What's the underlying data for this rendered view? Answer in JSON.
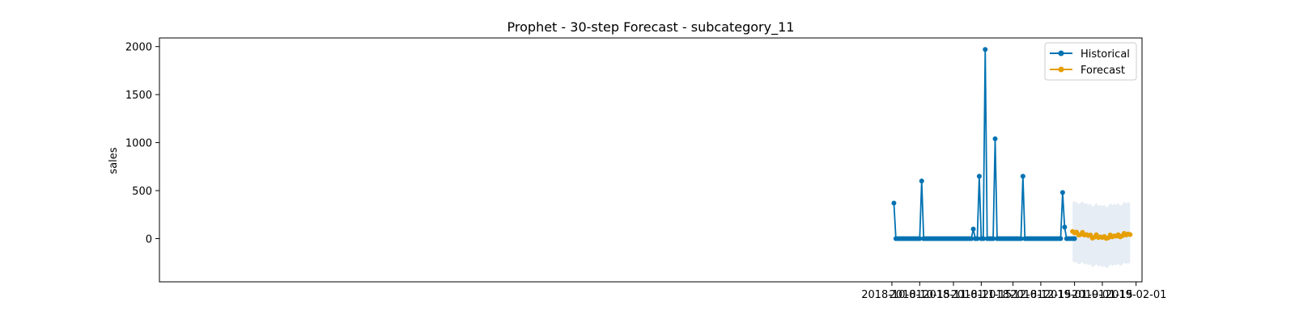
{
  "chart_data": {
    "type": "line",
    "title": "Prophet - 30-step Forecast - subcategory_11",
    "xlabel": "",
    "ylabel": "sales",
    "xlim": [
      "2017-09-27",
      "2019-02-04"
    ],
    "ylim": [
      -450,
      2090
    ],
    "x_ticks": [
      "2018-10-01",
      "2018-10-15",
      "2018-11-01",
      "2018-11-15",
      "2018-12-01",
      "2018-12-15",
      "2019-01-01",
      "2019-01-15",
      "2019-02-01"
    ],
    "y_ticks": [
      0,
      500,
      1000,
      1500,
      2000
    ],
    "grid": false,
    "legend": {
      "position": "top-right"
    },
    "colors": {
      "historical": "#0072B2",
      "forecast": "#E69F00",
      "band": "#dde7f1"
    },
    "series": [
      {
        "name": "Historical",
        "start": "2018-10-02",
        "values": [
          370,
          0,
          0,
          0,
          0,
          0,
          0,
          0,
          0,
          0,
          0,
          0,
          0,
          0,
          600,
          0,
          0,
          0,
          0,
          0,
          0,
          0,
          0,
          0,
          0,
          0,
          0,
          0,
          0,
          0,
          0,
          0,
          0,
          0,
          0,
          0,
          0,
          0,
          0,
          0,
          100,
          0,
          0,
          650,
          0,
          0,
          1970,
          0,
          0,
          0,
          0,
          1040,
          0,
          0,
          0,
          0,
          0,
          0,
          0,
          0,
          0,
          0,
          0,
          0,
          0,
          650,
          0,
          0,
          0,
          0,
          0,
          0,
          0,
          0,
          0,
          0,
          0,
          0,
          0,
          0,
          0,
          0,
          0,
          0,
          0,
          480,
          120,
          0,
          0,
          0,
          0,
          0
        ]
      },
      {
        "name": "Forecast",
        "start": "2018-12-31",
        "values": [
          75,
          60,
          68,
          38,
          42,
          65,
          38,
          42,
          32,
          38,
          5,
          15,
          40,
          12,
          18,
          12,
          22,
          2,
          8,
          38,
          18,
          28,
          25,
          40,
          18,
          28,
          55,
          38,
          48,
          42
        ],
        "upper": [
          382,
          385,
          380,
          360,
          368,
          392,
          360,
          370,
          350,
          365,
          330,
          345,
          372,
          340,
          350,
          338,
          355,
          325,
          335,
          370,
          348,
          360,
          352,
          372,
          340,
          355,
          388,
          365,
          380,
          375
        ],
        "lower": [
          -235,
          -250,
          -245,
          -270,
          -260,
          -240,
          -270,
          -262,
          -275,
          -268,
          -300,
          -285,
          -265,
          -290,
          -280,
          -300,
          -285,
          -305,
          -298,
          -265,
          -285,
          -272,
          -278,
          -262,
          -285,
          -272,
          -248,
          -265,
          -252,
          -265
        ]
      }
    ]
  }
}
